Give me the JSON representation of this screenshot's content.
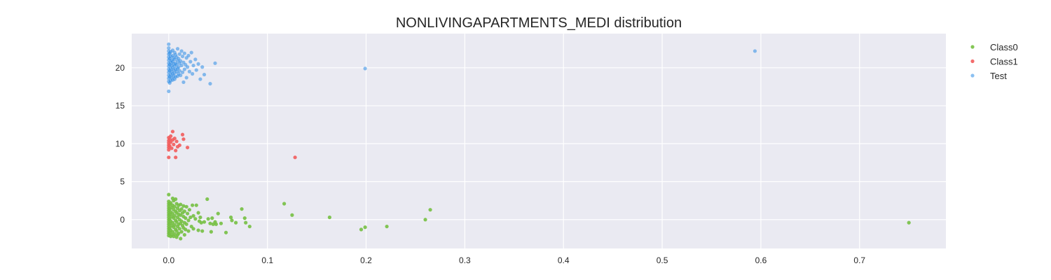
{
  "chart_data": {
    "type": "scatter",
    "title": "NONLIVINGAPARTMENTS_MEDI distribution",
    "xlabel": "",
    "ylabel": "",
    "xlim": [
      -0.0375,
      0.7875
    ],
    "ylim": [
      -3.8,
      24.5
    ],
    "x_ticks": [
      0.0,
      0.1,
      0.2,
      0.3,
      0.4,
      0.5,
      0.6,
      0.7
    ],
    "x_tick_labels": [
      "0.0",
      "0.1",
      "0.2",
      "0.3",
      "0.4",
      "0.5",
      "0.6",
      "0.7"
    ],
    "y_ticks": [
      0,
      5,
      10,
      15,
      20
    ],
    "y_tick_labels": [
      "0",
      "5",
      "10",
      "15",
      "20"
    ],
    "grid": true,
    "background": "#eaeaf2",
    "grid_color": "#ffffff",
    "legend_position": "top-right outside",
    "series": [
      {
        "name": "Class0",
        "color": "#76c043",
        "points": [
          [
            0.0,
            3.3
          ],
          [
            0.0,
            2.4
          ],
          [
            0.0,
            2.1
          ],
          [
            0.0,
            1.8
          ],
          [
            0.0,
            1.5
          ],
          [
            0.0,
            1.2
          ],
          [
            0.0,
            0.9
          ],
          [
            0.0,
            0.6
          ],
          [
            0.0,
            0.3
          ],
          [
            0.0,
            0.0
          ],
          [
            0.0,
            -0.3
          ],
          [
            0.0,
            -0.6
          ],
          [
            0.0,
            -0.9
          ],
          [
            0.0,
            -1.2
          ],
          [
            0.0,
            -1.5
          ],
          [
            0.0,
            -1.8
          ],
          [
            0.0,
            -2.1
          ],
          [
            0.001,
            2.0
          ],
          [
            0.001,
            1.4
          ],
          [
            0.001,
            0.7
          ],
          [
            0.001,
            0.1
          ],
          [
            0.001,
            -0.5
          ],
          [
            0.001,
            -1.1
          ],
          [
            0.001,
            -1.7
          ],
          [
            0.002,
            2.2
          ],
          [
            0.002,
            1.0
          ],
          [
            0.002,
            -0.2
          ],
          [
            0.002,
            -1.4
          ],
          [
            0.002,
            -2.2
          ],
          [
            0.003,
            1.6
          ],
          [
            0.003,
            0.4
          ],
          [
            0.003,
            -0.8
          ],
          [
            0.003,
            -2.0
          ],
          [
            0.004,
            2.8
          ],
          [
            0.004,
            1.9
          ],
          [
            0.004,
            0.8
          ],
          [
            0.004,
            -0.4
          ],
          [
            0.004,
            -1.6
          ],
          [
            0.005,
            2.5
          ],
          [
            0.005,
            1.3
          ],
          [
            0.005,
            0.2
          ],
          [
            0.005,
            -1.0
          ],
          [
            0.005,
            -2.2
          ],
          [
            0.006,
            1.7
          ],
          [
            0.006,
            0.5
          ],
          [
            0.006,
            -0.7
          ],
          [
            0.006,
            -1.9
          ],
          [
            0.007,
            2.7
          ],
          [
            0.007,
            1.1
          ],
          [
            0.007,
            -0.1
          ],
          [
            0.007,
            -1.3
          ],
          [
            0.008,
            2.1
          ],
          [
            0.008,
            0.9
          ],
          [
            0.008,
            -0.3
          ],
          [
            0.008,
            -1.5
          ],
          [
            0.008,
            -2.3
          ],
          [
            0.009,
            1.5
          ],
          [
            0.009,
            0.3
          ],
          [
            0.009,
            -0.9
          ],
          [
            0.009,
            -2.0
          ],
          [
            0.01,
            1.9
          ],
          [
            0.01,
            0.7
          ],
          [
            0.01,
            -0.6
          ],
          [
            0.01,
            -1.8
          ],
          [
            0.011,
            1.2
          ],
          [
            0.011,
            0.0
          ],
          [
            0.011,
            -1.2
          ],
          [
            0.012,
            2.0
          ],
          [
            0.012,
            0.6
          ],
          [
            0.012,
            -0.5
          ],
          [
            0.012,
            -2.5
          ],
          [
            0.013,
            1.4
          ],
          [
            0.013,
            -0.2
          ],
          [
            0.013,
            -1.6
          ],
          [
            0.014,
            0.9
          ],
          [
            0.014,
            -0.8
          ],
          [
            0.015,
            1.8
          ],
          [
            0.015,
            0.4
          ],
          [
            0.015,
            -1.1
          ],
          [
            0.016,
            1.1
          ],
          [
            0.016,
            -0.4
          ],
          [
            0.016,
            -2.0
          ],
          [
            0.017,
            0.2
          ],
          [
            0.017,
            -1.3
          ],
          [
            0.018,
            1.7
          ],
          [
            0.018,
            -0.6
          ],
          [
            0.019,
            0.8
          ],
          [
            0.02,
            -0.1
          ],
          [
            0.02,
            -1.5
          ],
          [
            0.021,
            1.3
          ],
          [
            0.022,
            0.3
          ],
          [
            0.023,
            -0.9
          ],
          [
            0.024,
            1.9
          ],
          [
            0.025,
            0.5
          ],
          [
            0.025,
            -1.2
          ],
          [
            0.027,
            0.1
          ],
          [
            0.028,
            1.9
          ],
          [
            0.03,
            0.9
          ],
          [
            0.03,
            -1.4
          ],
          [
            0.031,
            -0.2
          ],
          [
            0.032,
            0.3
          ],
          [
            0.033,
            -0.4
          ],
          [
            0.034,
            -1.5
          ],
          [
            0.036,
            -0.3
          ],
          [
            0.039,
            2.7
          ],
          [
            0.04,
            0.1
          ],
          [
            0.042,
            -0.5
          ],
          [
            0.043,
            -1.6
          ],
          [
            0.044,
            0.2
          ],
          [
            0.045,
            -0.6
          ],
          [
            0.047,
            -0.3
          ],
          [
            0.048,
            -0.6
          ],
          [
            0.05,
            0.8
          ],
          [
            0.053,
            -0.5
          ],
          [
            0.058,
            -1.7
          ],
          [
            0.063,
            0.3
          ],
          [
            0.064,
            -0.1
          ],
          [
            0.068,
            -0.4
          ],
          [
            0.074,
            1.4
          ],
          [
            0.077,
            0.2
          ],
          [
            0.078,
            -0.4
          ],
          [
            0.082,
            -0.9
          ],
          [
            0.117,
            2.1
          ],
          [
            0.125,
            0.6
          ],
          [
            0.163,
            0.3
          ],
          [
            0.195,
            -1.3
          ],
          [
            0.199,
            -1.0
          ],
          [
            0.221,
            -0.9
          ],
          [
            0.26,
            0.0
          ],
          [
            0.265,
            1.3
          ],
          [
            0.75,
            -0.4
          ]
        ]
      },
      {
        "name": "Class1",
        "color": "#f25c5c",
        "points": [
          [
            0.0,
            10.8
          ],
          [
            0.0,
            10.4
          ],
          [
            0.0,
            10.1
          ],
          [
            0.0,
            9.8
          ],
          [
            0.0,
            9.5
          ],
          [
            0.0,
            9.2
          ],
          [
            0.0,
            8.2
          ],
          [
            0.001,
            10.6
          ],
          [
            0.001,
            9.7
          ],
          [
            0.002,
            11.0
          ],
          [
            0.002,
            10.2
          ],
          [
            0.003,
            9.4
          ],
          [
            0.004,
            11.6
          ],
          [
            0.004,
            10.5
          ],
          [
            0.005,
            9.9
          ],
          [
            0.006,
            10.7
          ],
          [
            0.007,
            9.1
          ],
          [
            0.007,
            8.2
          ],
          [
            0.008,
            10.3
          ],
          [
            0.009,
            9.6
          ],
          [
            0.011,
            9.8
          ],
          [
            0.014,
            11.2
          ],
          [
            0.015,
            10.6
          ],
          [
            0.019,
            9.5
          ],
          [
            0.128,
            8.2
          ]
        ]
      },
      {
        "name": "Test",
        "color": "#2b8ce6",
        "points": [
          [
            0.0,
            23.1
          ],
          [
            0.0,
            22.6
          ],
          [
            0.0,
            22.2
          ],
          [
            0.0,
            21.8
          ],
          [
            0.0,
            21.4
          ],
          [
            0.0,
            21.0
          ],
          [
            0.0,
            20.6
          ],
          [
            0.0,
            20.2
          ],
          [
            0.0,
            19.8
          ],
          [
            0.0,
            19.4
          ],
          [
            0.0,
            19.0
          ],
          [
            0.0,
            18.6
          ],
          [
            0.0,
            18.2
          ],
          [
            0.0,
            16.9
          ],
          [
            0.001,
            21.9
          ],
          [
            0.001,
            21.2
          ],
          [
            0.001,
            20.4
          ],
          [
            0.001,
            19.6
          ],
          [
            0.001,
            18.8
          ],
          [
            0.001,
            18.0
          ],
          [
            0.002,
            22.1
          ],
          [
            0.002,
            21.5
          ],
          [
            0.002,
            20.7
          ],
          [
            0.002,
            19.9
          ],
          [
            0.002,
            19.1
          ],
          [
            0.002,
            18.3
          ],
          [
            0.003,
            21.0
          ],
          [
            0.003,
            20.3
          ],
          [
            0.003,
            19.5
          ],
          [
            0.003,
            18.7
          ],
          [
            0.004,
            22.3
          ],
          [
            0.004,
            21.6
          ],
          [
            0.004,
            20.8
          ],
          [
            0.004,
            20.0
          ],
          [
            0.004,
            19.2
          ],
          [
            0.004,
            18.4
          ],
          [
            0.005,
            21.3
          ],
          [
            0.005,
            20.5
          ],
          [
            0.005,
            19.7
          ],
          [
            0.005,
            18.9
          ],
          [
            0.006,
            22.0
          ],
          [
            0.006,
            21.1
          ],
          [
            0.006,
            20.2
          ],
          [
            0.006,
            19.3
          ],
          [
            0.006,
            18.5
          ],
          [
            0.007,
            21.7
          ],
          [
            0.007,
            20.6
          ],
          [
            0.007,
            19.8
          ],
          [
            0.007,
            18.8
          ],
          [
            0.008,
            21.4
          ],
          [
            0.008,
            20.4
          ],
          [
            0.008,
            19.5
          ],
          [
            0.009,
            22.5
          ],
          [
            0.009,
            20.9
          ],
          [
            0.009,
            19.9
          ],
          [
            0.009,
            18.9
          ],
          [
            0.01,
            21.2
          ],
          [
            0.01,
            20.1
          ],
          [
            0.01,
            19.2
          ],
          [
            0.011,
            21.8
          ],
          [
            0.011,
            20.6
          ],
          [
            0.011,
            19.6
          ],
          [
            0.012,
            20.9
          ],
          [
            0.012,
            19.0
          ],
          [
            0.013,
            22.2
          ],
          [
            0.013,
            20.3
          ],
          [
            0.014,
            21.5
          ],
          [
            0.014,
            19.4
          ],
          [
            0.015,
            20.7
          ],
          [
            0.015,
            18.1
          ],
          [
            0.016,
            21.9
          ],
          [
            0.016,
            19.8
          ],
          [
            0.017,
            20.4
          ],
          [
            0.018,
            21.3
          ],
          [
            0.018,
            18.7
          ],
          [
            0.019,
            20.1
          ],
          [
            0.02,
            21.6
          ],
          [
            0.021,
            19.5
          ],
          [
            0.022,
            20.8
          ],
          [
            0.023,
            22.0
          ],
          [
            0.024,
            19.2
          ],
          [
            0.025,
            20.3
          ],
          [
            0.027,
            21.1
          ],
          [
            0.028,
            19.7
          ],
          [
            0.03,
            20.5
          ],
          [
            0.032,
            18.5
          ],
          [
            0.034,
            20.1
          ],
          [
            0.036,
            19.1
          ],
          [
            0.042,
            17.9
          ],
          [
            0.047,
            20.6
          ],
          [
            0.199,
            19.9
          ],
          [
            0.594,
            22.2
          ]
        ]
      }
    ]
  }
}
